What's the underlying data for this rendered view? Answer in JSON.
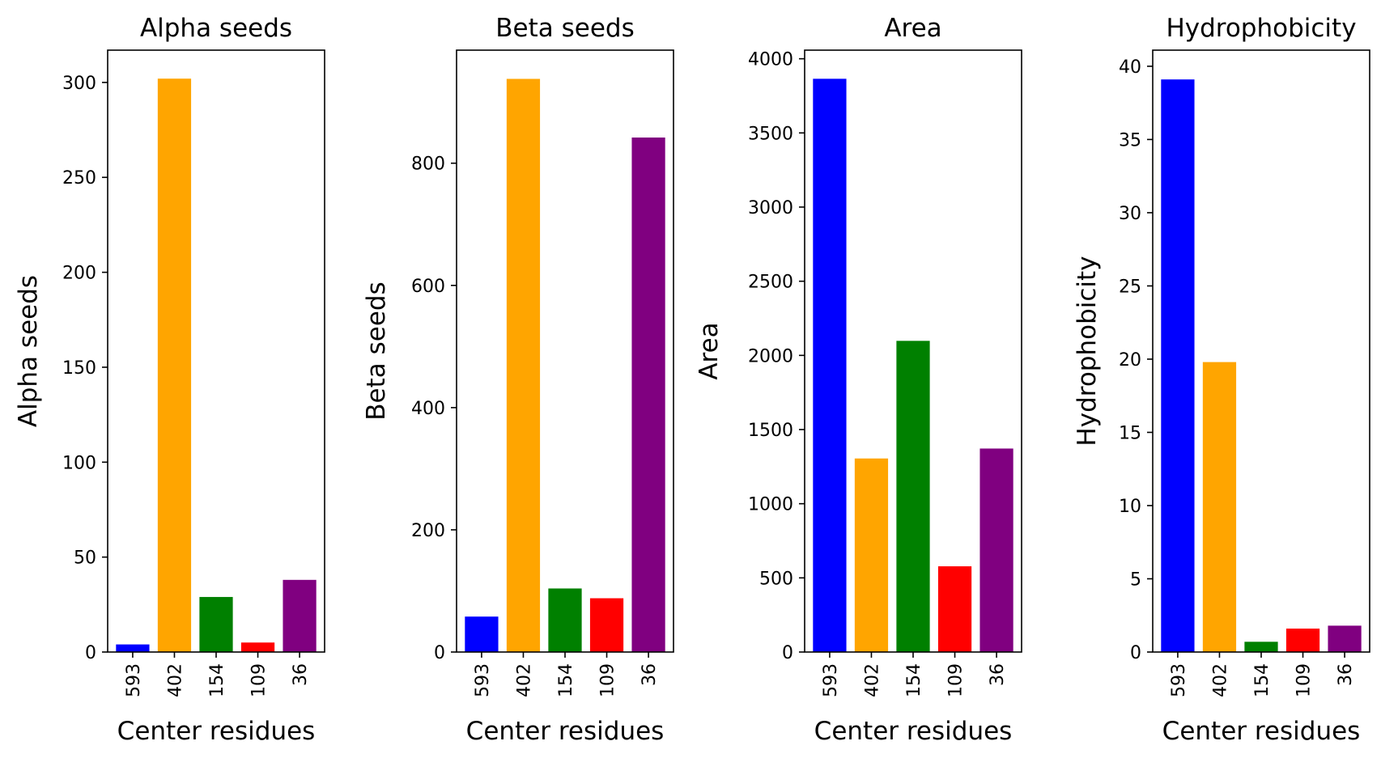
{
  "chart_data": [
    {
      "type": "bar",
      "title": "Alpha seeds",
      "xlabel": "Center residues",
      "ylabel": "Alpha seeds",
      "categories": [
        "593",
        "402",
        "154",
        "109",
        "36"
      ],
      "values": [
        4,
        302,
        29,
        5,
        38
      ],
      "colors": [
        "#0000ff",
        "#ffa500",
        "#008000",
        "#ff0000",
        "#800080"
      ],
      "ylim": [
        0,
        317
      ],
      "yticks": [
        0,
        50,
        100,
        150,
        200,
        250,
        300
      ],
      "grid": false
    },
    {
      "type": "bar",
      "title": "Beta seeds",
      "xlabel": "Center residues",
      "ylabel": "Beta seeds",
      "categories": [
        "593",
        "402",
        "154",
        "109",
        "36"
      ],
      "values": [
        58,
        938,
        104,
        88,
        842
      ],
      "colors": [
        "#0000ff",
        "#ffa500",
        "#008000",
        "#ff0000",
        "#800080"
      ],
      "ylim": [
        0,
        985
      ],
      "yticks": [
        0,
        200,
        400,
        600,
        800
      ],
      "grid": false
    },
    {
      "type": "bar",
      "title": "Area",
      "xlabel": "Center residues",
      "ylabel": "Area",
      "categories": [
        "593",
        "402",
        "154",
        "109",
        "36"
      ],
      "values": [
        3865,
        1305,
        2098,
        578,
        1372
      ],
      "colors": [
        "#0000ff",
        "#ffa500",
        "#008000",
        "#ff0000",
        "#800080"
      ],
      "ylim": [
        0,
        4058
      ],
      "yticks": [
        0,
        500,
        1000,
        1500,
        2000,
        2500,
        3000,
        3500,
        4000
      ],
      "grid": false
    },
    {
      "type": "bar",
      "title": "Hydrophobicity",
      "xlabel": "Center residues",
      "ylabel": "Hydrophobicity",
      "categories": [
        "593",
        "402",
        "154",
        "109",
        "36"
      ],
      "values": [
        39.1,
        19.8,
        0.7,
        1.6,
        1.8
      ],
      "colors": [
        "#0000ff",
        "#ffa500",
        "#008000",
        "#ff0000",
        "#800080"
      ],
      "ylim": [
        0,
        41.1
      ],
      "yticks": [
        0,
        5,
        10,
        15,
        20,
        25,
        30,
        35,
        40
      ],
      "grid": false
    }
  ]
}
